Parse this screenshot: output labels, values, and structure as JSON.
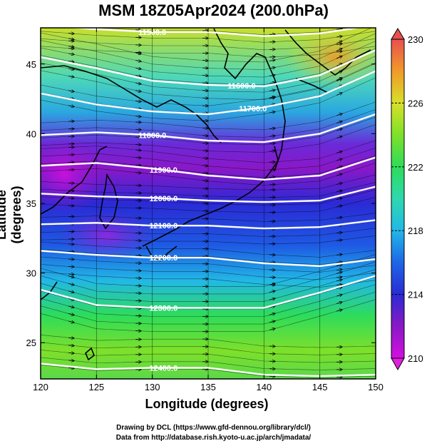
{
  "title": "MSM 18Z05Apr2024 (200.0hPa)",
  "axes": {
    "xlabel": "Longitude (degrees)",
    "ylabel": "Latitude  (degrees)",
    "xlim": [
      120,
      150
    ],
    "ylim": [
      22.4,
      47.6
    ],
    "xticks": [
      120,
      125,
      130,
      135,
      140,
      145,
      150
    ],
    "yticks": [
      25,
      30,
      35,
      40,
      45
    ]
  },
  "colorbar": {
    "range": [
      210,
      230
    ],
    "labels": [
      210,
      214,
      218,
      222,
      226,
      230
    ],
    "colors": [
      "#d40fe0",
      "#8a18c6",
      "#2a2ad4",
      "#1e66e6",
      "#22b8e6",
      "#2ed8b0",
      "#2edc5a",
      "#7ee02a",
      "#d8e02a",
      "#f09a28",
      "#f06a3a",
      "#e85050"
    ]
  },
  "contours": [
    {
      "label": "11500.0",
      "lon": [
        120,
        125,
        130,
        135,
        140,
        145,
        150
      ],
      "lat": [
        47.8,
        47.5,
        47.3,
        47.3,
        47.0,
        47.2,
        47.8
      ]
    },
    {
      "label": "11600.0",
      "lon": [
        120,
        125,
        130,
        135,
        140,
        145,
        150
      ],
      "lat": [
        45.5,
        44.7,
        43.8,
        43.5,
        43.4,
        44.2,
        46.0
      ]
    },
    {
      "label": "11700.0",
      "lon": [
        120,
        125,
        130,
        135,
        140,
        145,
        150
      ],
      "lat": [
        42.9,
        42.1,
        41.6,
        41.4,
        41.9,
        42.7,
        44.5
      ]
    },
    {
      "label": "11800.0",
      "lon": [
        120,
        125,
        130,
        135,
        140,
        145,
        150
      ],
      "lat": [
        39.9,
        40.1,
        39.9,
        39.5,
        39.4,
        40.0,
        41.4
      ]
    },
    {
      "label": "11900.0",
      "lon": [
        120,
        125,
        130,
        135,
        140,
        145,
        150
      ],
      "lat": [
        37.7,
        37.9,
        37.5,
        37.0,
        36.7,
        37.0,
        38.3
      ]
    },
    {
      "label": "12000.0",
      "lon": [
        120,
        125,
        130,
        135,
        140,
        145,
        150
      ],
      "lat": [
        35.7,
        35.5,
        35.4,
        35.2,
        35.1,
        35.2,
        36.2
      ]
    },
    {
      "label": "12100.0",
      "lon": [
        120,
        125,
        130,
        135,
        140,
        145,
        150
      ],
      "lat": [
        33.5,
        33.6,
        33.4,
        33.4,
        33.2,
        33.3,
        33.8
      ]
    },
    {
      "label": "12200.0",
      "lon": [
        120,
        125,
        130,
        135,
        140,
        145,
        150
      ],
      "lat": [
        31.6,
        31.3,
        31.1,
        31.1,
        30.7,
        30.5,
        31.0
      ]
    },
    {
      "label": "12300.0",
      "lon": [
        120,
        125,
        130,
        135,
        140,
        145,
        150
      ],
      "lat": [
        28.8,
        27.7,
        27.5,
        27.5,
        27.5,
        28.6,
        29.8
      ]
    },
    {
      "label": "12400.0",
      "lon": [
        120,
        125,
        130,
        135,
        140,
        145,
        150
      ],
      "lat": [
        23.5,
        23.1,
        23.2,
        23.2,
        22.7,
        22.6,
        22.7
      ]
    }
  ],
  "credits": {
    "line1": "Drawing by DCL (https://www.gfd-dennou.org/library/dcl/)",
    "line2": "Data from http://database.rish.kyoto-u.ac.jp/arch/jmadata/"
  }
}
